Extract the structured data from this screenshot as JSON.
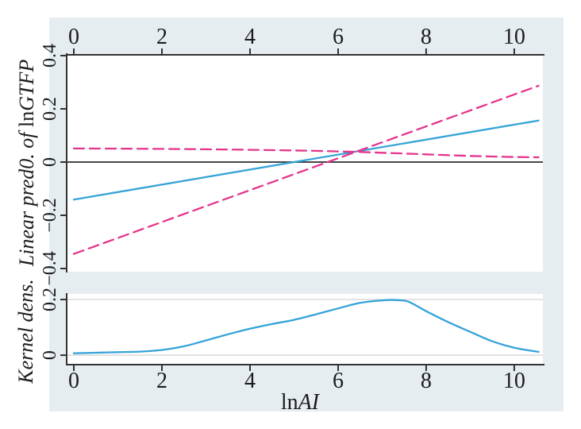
{
  "figure": {
    "background_color": "#e6edf0",
    "plot_area_color": "#ffffff",
    "axis_color": "#333333",
    "zero_line_color": "#474747",
    "gridline_color": "#dcdcdc",
    "fit_color": "#35a3d8",
    "ci_color": "#e5358c",
    "text_color": "#1c1c1c"
  },
  "labels": {
    "top_ylabel_italic_prefix": "Linear pred0. of ",
    "top_ylabel_roman": "ln",
    "top_ylabel_italic_var": "GTFP",
    "bottom_ylabel": "Kernel dens.",
    "xlabel_roman": "ln",
    "xlabel_italic": "AI"
  },
  "chart_data": [
    {
      "id": "linear-prediction-panel",
      "type": "line",
      "panel": "top",
      "ylabel": "Linear pred0. of lnGTFP",
      "xlim": [
        -0.18,
        10.65
      ],
      "ylim": [
        -0.412,
        0.406
      ],
      "grid": false,
      "ref_line_y": 0,
      "x_ticks": [
        {
          "v": 0,
          "label": "0"
        },
        {
          "v": 2,
          "label": "2"
        },
        {
          "v": 4,
          "label": "4"
        },
        {
          "v": 6,
          "label": "6"
        },
        {
          "v": 8,
          "label": "8"
        },
        {
          "v": 10,
          "label": "10"
        }
      ],
      "y_ticks": [
        {
          "v": 0.4,
          "label": "0.4"
        },
        {
          "v": 0.2,
          "label": "0.2"
        },
        {
          "v": 0,
          "label": "0"
        },
        {
          "v": -0.2,
          "label": "−0.2"
        },
        {
          "v": -0.4,
          "label": "−0.4"
        }
      ],
      "series": [
        {
          "name": "linear-fit",
          "style": "solid",
          "color": "#35a3d8",
          "x": [
            0,
            10.55
          ],
          "y": [
            -0.141,
            0.156
          ]
        },
        {
          "name": "ci-upper",
          "style": "dashed",
          "color": "#e5358c",
          "x": [
            0,
            1,
            2,
            3,
            4,
            5,
            5.5,
            6,
            6.5,
            7,
            7.5,
            8,
            8.5,
            9,
            9.5,
            10,
            10.55
          ],
          "y": [
            0.051,
            0.0505,
            0.0495,
            0.048,
            0.046,
            0.0435,
            0.042,
            0.04,
            0.038,
            0.035,
            0.032,
            0.029,
            0.026,
            0.023,
            0.021,
            0.019,
            0.018
          ]
        },
        {
          "name": "ci-lower",
          "style": "dashed",
          "color": "#e5358c",
          "x": [
            0,
            10.55
          ],
          "y": [
            -0.345,
            0.287
          ]
        }
      ]
    },
    {
      "id": "kernel-density-panel",
      "type": "line",
      "panel": "bottom",
      "ylabel": "Kernel dens.",
      "xlabel": "lnAI",
      "xlim": [
        -0.18,
        10.65
      ],
      "ylim": [
        -0.031,
        0.22
      ],
      "grid": true,
      "gridlines_y": [
        0,
        0.2
      ],
      "x_ticks": [
        {
          "v": 0,
          "label": "0"
        },
        {
          "v": 2,
          "label": "2"
        },
        {
          "v": 4,
          "label": "4"
        },
        {
          "v": 6,
          "label": "6"
        },
        {
          "v": 8,
          "label": "8"
        },
        {
          "v": 10,
          "label": "10"
        }
      ],
      "y_ticks": [
        {
          "v": 0.2,
          "label": "0.2"
        },
        {
          "v": 0,
          "label": "0"
        }
      ],
      "series": [
        {
          "name": "kernel-density",
          "style": "solid",
          "color": "#35a3d8",
          "x": [
            0,
            0.5,
            1,
            1.5,
            2,
            2.5,
            3,
            3.5,
            4,
            4.5,
            5,
            5.5,
            6,
            6.5,
            7,
            7.3,
            7.6,
            8,
            8.5,
            9,
            9.5,
            10,
            10.55
          ],
          "y": [
            0.007,
            0.009,
            0.011,
            0.013,
            0.019,
            0.032,
            0.053,
            0.075,
            0.095,
            0.112,
            0.127,
            0.147,
            0.168,
            0.188,
            0.197,
            0.198,
            0.192,
            0.158,
            0.119,
            0.084,
            0.05,
            0.027,
            0.012
          ]
        }
      ]
    }
  ]
}
